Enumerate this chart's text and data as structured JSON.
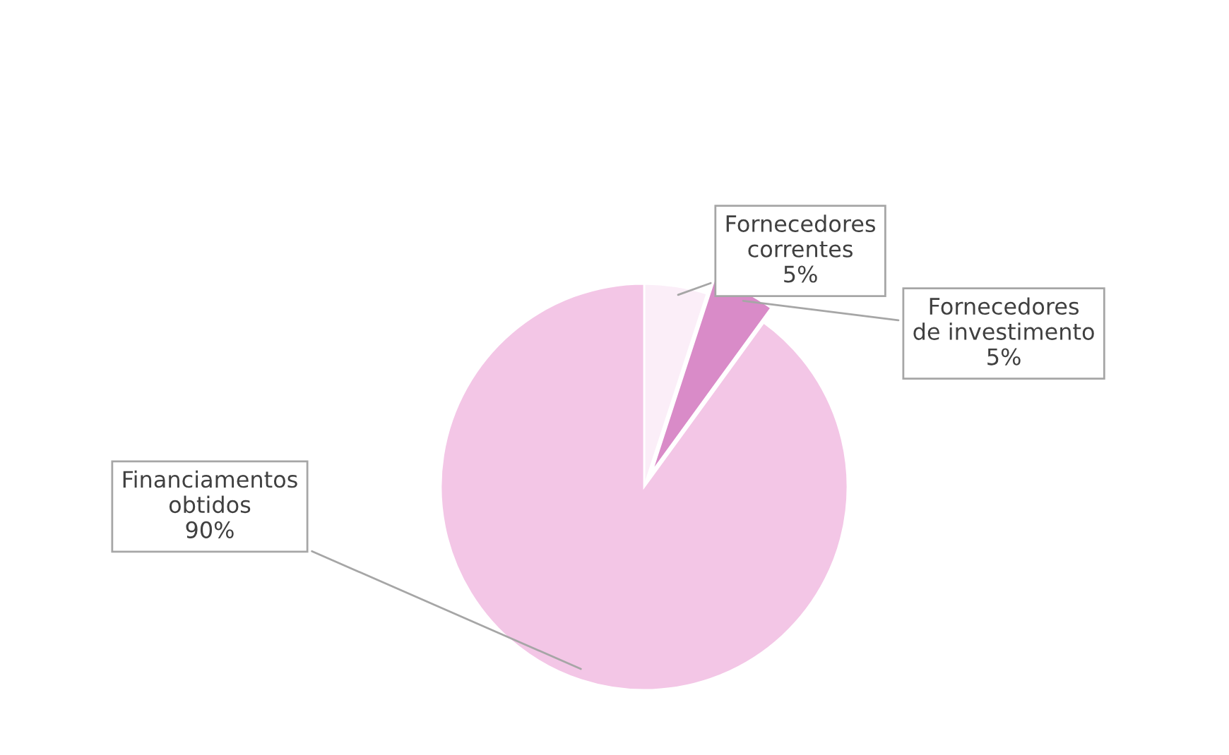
{
  "chart_data": {
    "type": "pie",
    "categories": [
      "Fornecedores\ncorrentes",
      "Fornecedores\nde investimento",
      "Financiamentos\nobtidos"
    ],
    "values": [
      5,
      5,
      90
    ],
    "value_labels": [
      "5%",
      "5%",
      "90%"
    ],
    "colors": [
      "#fbeef8",
      "#d98bc8",
      "#f3c6e6"
    ],
    "legend": false
  }
}
